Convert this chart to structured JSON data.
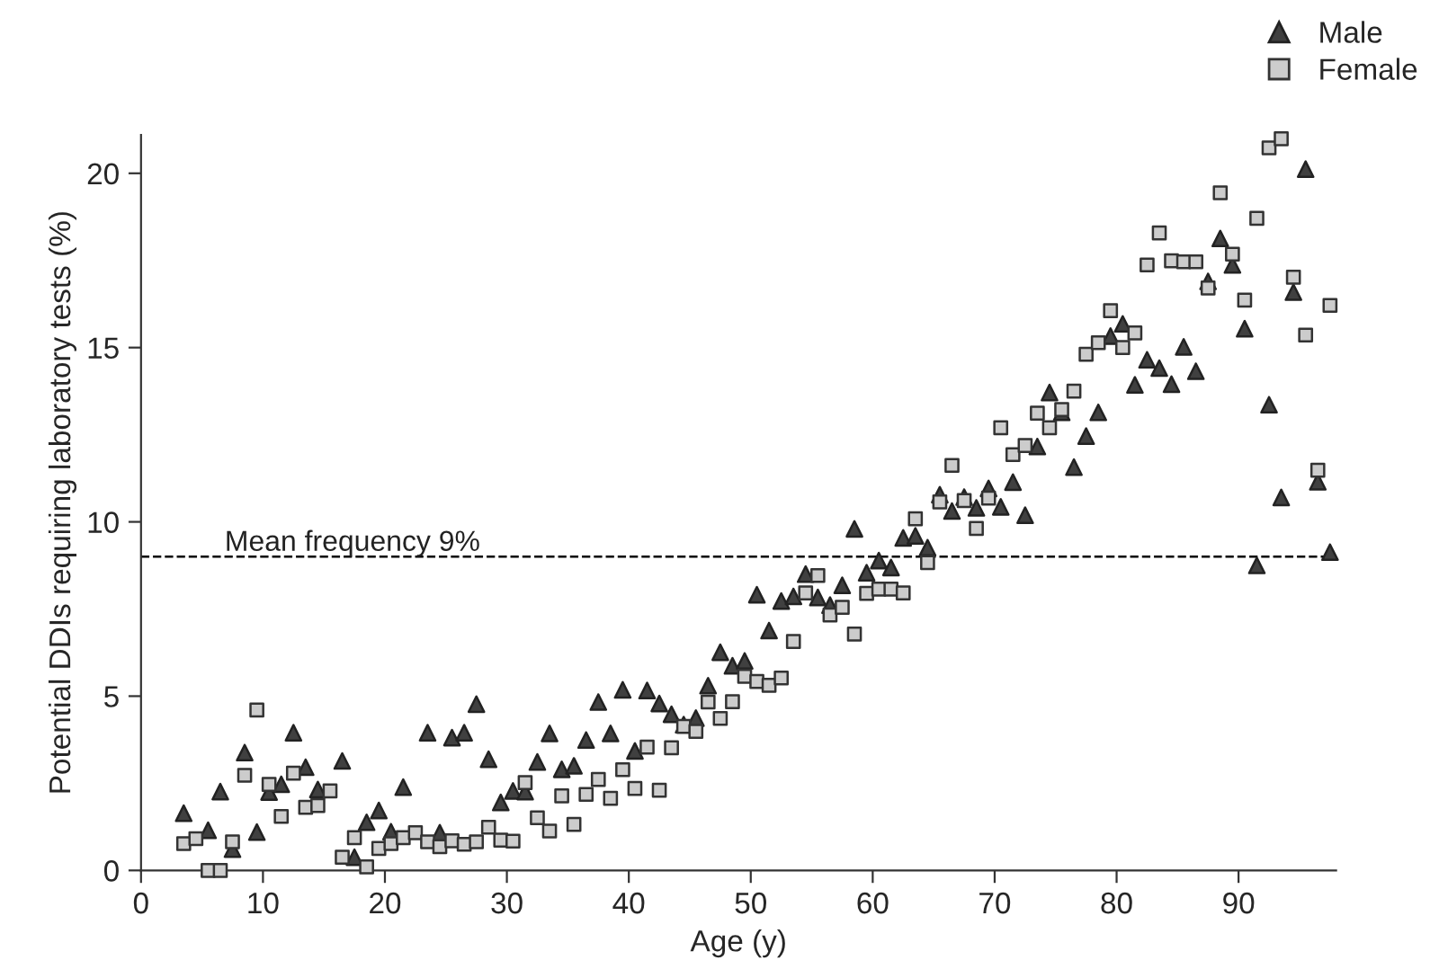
{
  "chart_data": {
    "type": "scatter",
    "xlabel": "Age (y)",
    "ylabel": "Potential DDIs requiring laboratory tests (%)",
    "xlim": [
      0,
      98
    ],
    "xticks": [
      0,
      10,
      20,
      30,
      40,
      50,
      60,
      70,
      80,
      90
    ],
    "ylim": [
      0,
      21.1
    ],
    "yticks": [
      0,
      5,
      10,
      15,
      20
    ],
    "grid": false,
    "legend": "top right",
    "ref_lines": [
      {
        "axis": "y",
        "value": 9,
        "label": "Mean frequency 9%",
        "line_style": "dashed",
        "color": "#000000"
      }
    ],
    "series": [
      {
        "name": "Male",
        "color": "#404040",
        "marker": "triangle",
        "x": [
          3.5,
          5.5,
          6.5,
          7.5,
          8.5,
          9.5,
          10.5,
          11.5,
          12.5,
          13.5,
          14.5,
          16.5,
          17.5,
          18.5,
          19.5,
          20.5,
          21.5,
          23.5,
          24.5,
          25.5,
          26.5,
          27.5,
          28.5,
          29.5,
          30.5,
          31.5,
          32.5,
          33.5,
          34.5,
          35.5,
          36.5,
          37.5,
          38.5,
          39.5,
          40.5,
          41.5,
          42.5,
          43.5,
          44.5,
          45.5,
          46.5,
          47.5,
          48.5,
          49.5,
          50.5,
          51.5,
          52.5,
          53.5,
          54.5,
          55.5,
          56.5,
          57.5,
          58.5,
          59.5,
          60.5,
          61.5,
          62.5,
          63.5,
          64.5,
          65.5,
          66.5,
          67.5,
          68.5,
          69.5,
          70.5,
          71.5,
          72.5,
          73.5,
          74.5,
          75.5,
          76.5,
          77.5,
          78.5,
          79.5,
          80.5,
          81.5,
          82.5,
          83.5,
          84.5,
          85.5,
          86.5,
          87.5,
          88.5,
          89.5,
          90.5,
          91.5,
          92.5,
          93.5,
          94.5,
          95.5,
          96.5,
          97.5
        ],
        "values": [
          1.64,
          1.15,
          2.26,
          0.61,
          3.38,
          1.1,
          2.25,
          2.47,
          3.95,
          2.96,
          2.32,
          3.14,
          0.38,
          1.38,
          1.72,
          1.11,
          2.39,
          3.95,
          1.08,
          3.81,
          3.95,
          4.77,
          3.19,
          1.95,
          2.28,
          2.26,
          3.11,
          3.93,
          2.9,
          3.0,
          3.74,
          4.83,
          3.93,
          5.18,
          3.43,
          5.16,
          4.79,
          4.48,
          4.18,
          4.37,
          5.3,
          6.26,
          5.87,
          6.01,
          7.91,
          6.88,
          7.73,
          7.86,
          8.5,
          7.83,
          7.61,
          8.18,
          9.8,
          8.54,
          8.89,
          8.69,
          9.54,
          9.6,
          9.26,
          10.78,
          10.31,
          10.71,
          10.4,
          10.96,
          10.43,
          11.14,
          10.19,
          12.16,
          13.71,
          13.14,
          11.57,
          12.46,
          13.14,
          15.33,
          15.68,
          13.93,
          14.65,
          14.41,
          13.95,
          15.02,
          14.32,
          16.9,
          18.13,
          17.37,
          15.54,
          8.75,
          13.36,
          10.7,
          16.59,
          20.12,
          11.15,
          9.13
        ]
      },
      {
        "name": "Female",
        "color": "#cccccc",
        "marker": "square",
        "x": [
          3.5,
          4.5,
          5.5,
          6.5,
          7.5,
          8.5,
          9.5,
          10.5,
          11.5,
          12.5,
          13.5,
          14.5,
          15.5,
          16.5,
          17.5,
          18.5,
          19.5,
          20.5,
          21.5,
          22.5,
          23.5,
          24.5,
          25.5,
          26.5,
          27.5,
          28.5,
          29.5,
          30.5,
          31.5,
          32.5,
          33.5,
          34.5,
          35.5,
          36.5,
          37.5,
          38.5,
          39.5,
          40.5,
          41.5,
          42.5,
          43.5,
          44.5,
          45.5,
          46.5,
          47.5,
          48.5,
          49.5,
          50.5,
          51.5,
          52.5,
          53.5,
          54.5,
          55.5,
          56.5,
          57.5,
          58.5,
          59.5,
          60.5,
          61.5,
          62.5,
          63.5,
          64.5,
          65.5,
          66.5,
          67.5,
          68.5,
          69.5,
          70.5,
          71.5,
          72.5,
          73.5,
          74.5,
          75.5,
          76.5,
          77.5,
          78.5,
          79.5,
          80.5,
          81.5,
          82.5,
          83.5,
          84.5,
          85.5,
          86.5,
          87.5,
          88.5,
          89.5,
          90.5,
          91.5,
          92.5,
          93.5,
          94.5,
          95.5,
          96.5,
          97.5
        ],
        "values": [
          0.77,
          0.91,
          0,
          0,
          0.82,
          2.73,
          4.6,
          2.47,
          1.55,
          2.79,
          1.81,
          1.86,
          2.28,
          0.38,
          0.94,
          0.1,
          0.63,
          0.77,
          0.94,
          1.08,
          0.82,
          0.68,
          0.85,
          0.75,
          0.82,
          1.24,
          0.87,
          0.84,
          2.52,
          1.51,
          1.13,
          2.14,
          1.32,
          2.18,
          2.61,
          2.07,
          2.89,
          2.35,
          3.54,
          2.3,
          3.52,
          4.13,
          3.99,
          4.83,
          4.36,
          4.84,
          5.57,
          5.42,
          5.31,
          5.52,
          6.57,
          7.96,
          8.46,
          7.33,
          7.55,
          6.78,
          7.95,
          8.07,
          8.07,
          7.96,
          10.09,
          8.83,
          10.57,
          11.62,
          10.61,
          9.81,
          10.68,
          12.7,
          11.93,
          12.19,
          13.12,
          12.7,
          13.22,
          13.75,
          14.81,
          15.14,
          16.06,
          15.0,
          15.42,
          17.37,
          18.29,
          17.49,
          17.46,
          17.46,
          16.71,
          19.44,
          17.68,
          16.36,
          18.71,
          20.73,
          20.99,
          17.02,
          15.36,
          11.48,
          16.21
        ]
      }
    ]
  }
}
